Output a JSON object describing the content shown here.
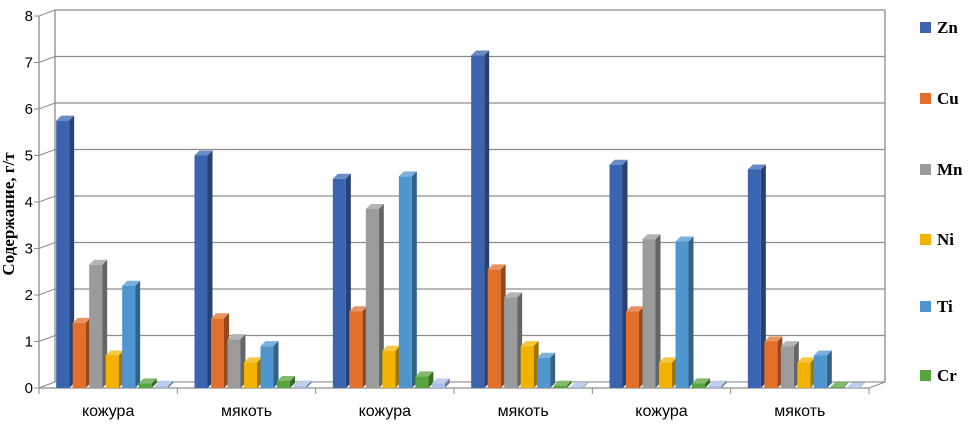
{
  "chart_data": {
    "type": "bar",
    "style": "3d-clustered-column",
    "ylabel": "Содержание, г/т",
    "xlabel": "",
    "ylim": [
      0,
      8
    ],
    "yticks": [
      0,
      1,
      2,
      3,
      4,
      5,
      6,
      7,
      8
    ],
    "grid": true,
    "legend_position": "right",
    "categories": [
      "кожура",
      "мякоть",
      "кожура",
      "мякоть",
      "кожура",
      "мякоть"
    ],
    "series": [
      {
        "name": "Zn",
        "color": "#3A64B0",
        "values": [
          5.75,
          5.0,
          4.5,
          7.15,
          4.8,
          4.7
        ]
      },
      {
        "name": "Cu",
        "color": "#E2702B",
        "values": [
          1.4,
          1.5,
          1.65,
          2.55,
          1.65,
          1.0
        ]
      },
      {
        "name": "Mn",
        "color": "#9B9B9B",
        "values": [
          2.65,
          1.05,
          3.85,
          1.95,
          3.2,
          0.9
        ]
      },
      {
        "name": "Ni",
        "color": "#F2B300",
        "values": [
          0.7,
          0.55,
          0.8,
          0.9,
          0.55,
          0.55
        ]
      },
      {
        "name": "Ti",
        "color": "#4F96CF",
        "values": [
          2.2,
          0.9,
          4.55,
          0.65,
          3.15,
          0.7
        ]
      },
      {
        "name": "Cr",
        "color": "#58A43C",
        "values": [
          0.1,
          0.15,
          0.25,
          0.05,
          0.1,
          0.02
        ]
      },
      {
        "name": "",
        "color": "#A9BEE6",
        "values": [
          0.05,
          0.05,
          0.1,
          0.02,
          0.05,
          0.01
        ]
      }
    ]
  }
}
